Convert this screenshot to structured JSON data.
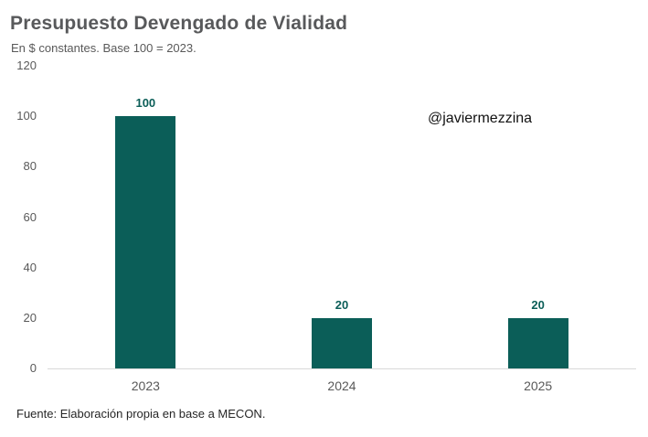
{
  "page": {
    "title": "Presupuesto Devengado de Vialidad",
    "subtitle": "En $ constantes. Base 100 = 2023.",
    "watermark": "@javiermezzina",
    "source": "Fuente: Elaboración propia en base a MECON."
  },
  "chart_data": {
    "type": "bar",
    "title": "Presupuesto Devengado de Vialidad",
    "subtitle": "En $ constantes. Base 100 = 2023.",
    "categories": [
      "2023",
      "2024",
      "2025"
    ],
    "values": [
      100,
      20,
      20
    ],
    "data_labels": [
      "100",
      "20",
      "20"
    ],
    "yticks": [
      0,
      20,
      40,
      60,
      80,
      100,
      120
    ],
    "ylim": [
      0,
      120
    ],
    "xlabel": "",
    "ylabel": "",
    "grid": false,
    "legend": false,
    "annotations": [
      "@javiermezzina"
    ],
    "source": "Fuente: Elaboración propia en base a MECON.",
    "bar_color": "#0b5e58",
    "data_label_color": "#0b5e58",
    "axis_text_color": "#595959",
    "baseline_color": "#d9d9d9"
  }
}
